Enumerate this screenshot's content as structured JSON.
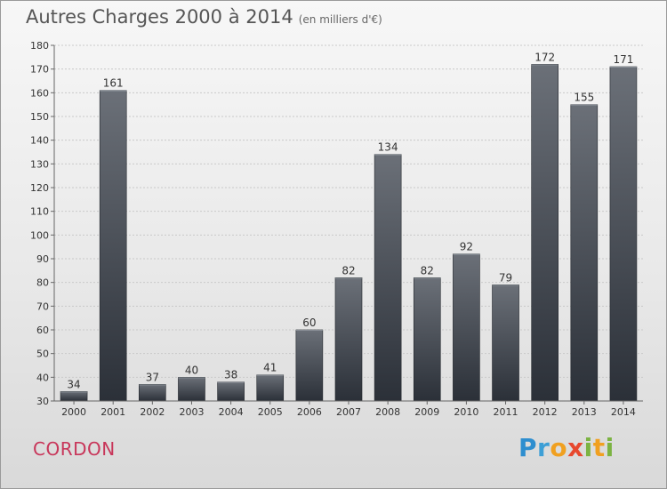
{
  "title": "Autres Charges 2000 à 2014",
  "unit": "(en milliers d'€)",
  "commune": "CORDON",
  "brand": {
    "letters": [
      {
        "ch": "P",
        "color": "#2e8ecf"
      },
      {
        "ch": "r",
        "color": "#3d9fd6"
      },
      {
        "ch": "o",
        "color": "#f0a020"
      },
      {
        "ch": "x",
        "color": "#e7482e"
      },
      {
        "ch": "i",
        "color": "#7cb342"
      },
      {
        "ch": "t",
        "color": "#f0a020"
      },
      {
        "ch": "i",
        "color": "#7cb342"
      }
    ]
  },
  "chart_data": {
    "type": "bar",
    "categories": [
      "2000",
      "2001",
      "2002",
      "2003",
      "2004",
      "2005",
      "2006",
      "2007",
      "2008",
      "2009",
      "2010",
      "2011",
      "2012",
      "2013",
      "2014"
    ],
    "values": [
      34,
      161,
      37,
      40,
      38,
      41,
      60,
      82,
      134,
      82,
      92,
      79,
      172,
      155,
      171
    ],
    "title": "Autres Charges 2000 à 2014",
    "ylim": [
      30,
      180
    ],
    "yticks": [
      30,
      40,
      50,
      60,
      70,
      80,
      90,
      100,
      110,
      120,
      130,
      140,
      150,
      160,
      170,
      180
    ],
    "grid": true,
    "data_labels": true,
    "bar_color_top": "#6b7078",
    "bar_color_bottom": "#2b3038"
  }
}
